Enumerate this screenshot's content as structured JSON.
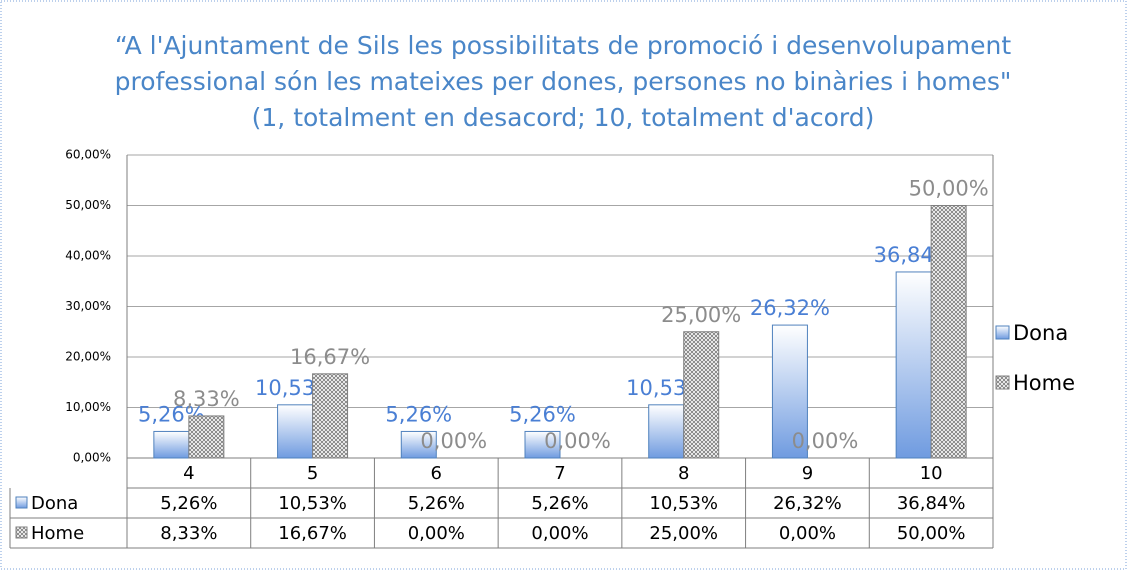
{
  "chart_data": {
    "type": "bar",
    "title": [
      "“A l'Ajuntament de Sils les possibilitats de promoció i desenvolupament",
      "professional són les mateixes per dones, persones no binàries i homes\"",
      "(1, totalment en desacord; 10, totalment d'acord)"
    ],
    "categories": [
      "4",
      "5",
      "6",
      "7",
      "8",
      "9",
      "10"
    ],
    "series": [
      {
        "name": "Dona",
        "color": "#4a7fd4",
        "values": [
          5.26,
          10.53,
          5.26,
          5.26,
          10.53,
          26.32,
          36.84
        ],
        "value_labels": [
          "5,26%",
          "10,53%",
          "5,26%",
          "5,26%",
          "10,53%",
          "26,32%",
          "36,84%"
        ]
      },
      {
        "name": "Home",
        "color": "#8c8c8c",
        "values": [
          8.33,
          16.67,
          0,
          0,
          25,
          0,
          50
        ],
        "value_labels": [
          "8,33%",
          "16,67%",
          "0,00%",
          "0,00%",
          "25,00%",
          "0,00%",
          "50,00%"
        ]
      }
    ],
    "ylim": [
      0,
      60
    ],
    "yticks": [
      {
        "value": 0,
        "label": "0,00%"
      },
      {
        "value": 10,
        "label": "10,00%"
      },
      {
        "value": 20,
        "label": "20,00%"
      },
      {
        "value": 30,
        "label": "30,00%"
      },
      {
        "value": 40,
        "label": "40,00%"
      },
      {
        "value": 50,
        "label": "50,00%"
      },
      {
        "value": 60,
        "label": "60,00%"
      }
    ],
    "grid": true,
    "legend": "right",
    "data_table": true
  }
}
